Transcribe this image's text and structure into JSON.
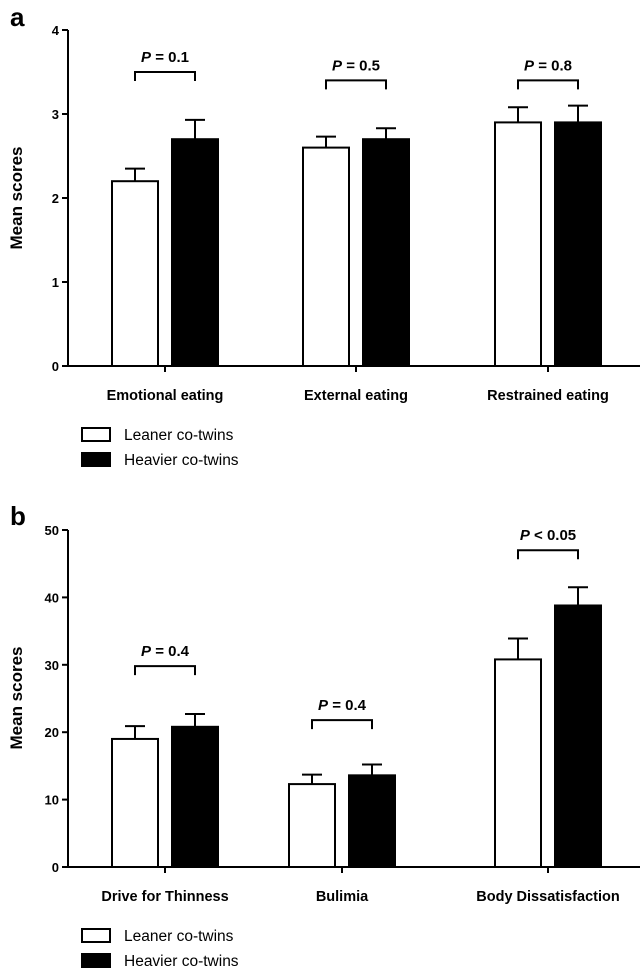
{
  "chart_data": [
    {
      "panel": "a",
      "type": "bar",
      "ylabel": "Mean scores",
      "xlabel": "",
      "ylim": [
        0,
        4
      ],
      "yticks": [
        0,
        1,
        2,
        3,
        4
      ],
      "categories": [
        "Emotional eating",
        "External eating",
        "Restrained eating"
      ],
      "series": [
        {
          "name": "Leaner co-twins",
          "color": "#ffffff",
          "values": [
            2.2,
            2.6,
            2.9
          ],
          "errors": [
            0.15,
            0.13,
            0.18
          ]
        },
        {
          "name": "Heavier co-twins",
          "color": "#000000",
          "values": [
            2.7,
            2.7,
            2.9
          ],
          "errors": [
            0.23,
            0.13,
            0.2
          ]
        }
      ],
      "annotations": [
        {
          "category": "Emotional eating",
          "prefix": "P",
          "text": " = 0.1",
          "y": 3.5
        },
        {
          "category": "External eating",
          "prefix": "P",
          "text": " = 0.5",
          "y": 3.4
        },
        {
          "category": "Restrained eating",
          "prefix": "P",
          "text": " = 0.8",
          "y": 3.4
        }
      ],
      "legend": [
        "Leaner co-twins",
        "Heavier co-twins"
      ]
    },
    {
      "panel": "b",
      "type": "bar",
      "ylabel": "Mean scores",
      "xlabel": "",
      "ylim": [
        0,
        50
      ],
      "yticks": [
        0,
        10,
        20,
        30,
        40,
        50
      ],
      "categories": [
        "Drive for Thinness",
        "Bulimia",
        "Body Dissatisfaction"
      ],
      "series": [
        {
          "name": "Leaner co-twins",
          "color": "#ffffff",
          "values": [
            19.0,
            12.3,
            30.8
          ],
          "errors": [
            1.9,
            1.4,
            3.1
          ]
        },
        {
          "name": "Heavier co-twins",
          "color": "#000000",
          "values": [
            20.8,
            13.6,
            38.8
          ],
          "errors": [
            1.9,
            1.6,
            2.7
          ]
        }
      ],
      "annotations": [
        {
          "category": "Drive for Thinness",
          "prefix": "P",
          "text": " = 0.4",
          "y": 29.8
        },
        {
          "category": "Bulimia",
          "prefix": "P",
          "text": " = 0.4",
          "y": 21.8
        },
        {
          "category": "Body Dissatisfaction",
          "prefix": "P",
          "text": " < 0.05",
          "y": 47.0
        }
      ],
      "legend": [
        "Leaner co-twins",
        "Heavier co-twins"
      ]
    }
  ]
}
